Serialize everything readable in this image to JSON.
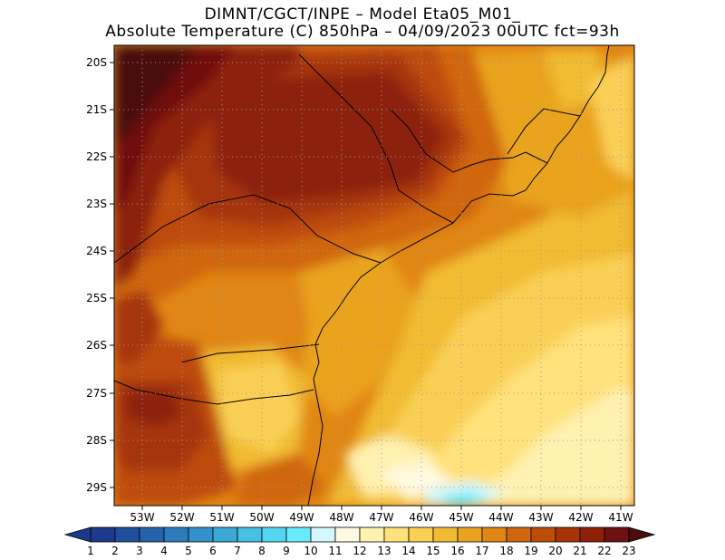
{
  "header": {
    "line1": "DIMNT/CGCT/INPE  –   Model Eta05_M01_",
    "line2": "Absolute Temperature (C) 850hPa –   04/09/2023 00UTC fct=93h"
  },
  "axes": {
    "lat_labels": [
      "20S",
      "21S",
      "22S",
      "23S",
      "24S",
      "25S",
      "26S",
      "27S",
      "28S",
      "29S"
    ],
    "lon_labels": [
      "53W",
      "52W",
      "51W",
      "50W",
      "49W",
      "48W",
      "47W",
      "46W",
      "45W",
      "44W",
      "43W",
      "42W",
      "41W"
    ]
  },
  "colorbar": {
    "labels": [
      "1",
      "2",
      "3",
      "4",
      "5",
      "6",
      "7",
      "8",
      "9",
      "10",
      "11",
      "12",
      "13",
      "14",
      "15",
      "16",
      "17",
      "18",
      "19",
      "20",
      "21",
      "22",
      "23"
    ],
    "colors": [
      "#1b3a8c",
      "#1f4f9c",
      "#2563ab",
      "#2b7bbd",
      "#3391cb",
      "#3ba8d7",
      "#46c0e4",
      "#53d6ef",
      "#66ecfb",
      "#d3f7fb",
      "#fff9e1",
      "#fff1b0",
      "#ffe27c",
      "#f9d054",
      "#f1bb33",
      "#eaa31f",
      "#e08614",
      "#d0660d",
      "#be4c09",
      "#a63407",
      "#8c2108",
      "#6f1111",
      "#4a0d0d"
    ]
  },
  "legend": {
    "grid": "dotted"
  }
}
